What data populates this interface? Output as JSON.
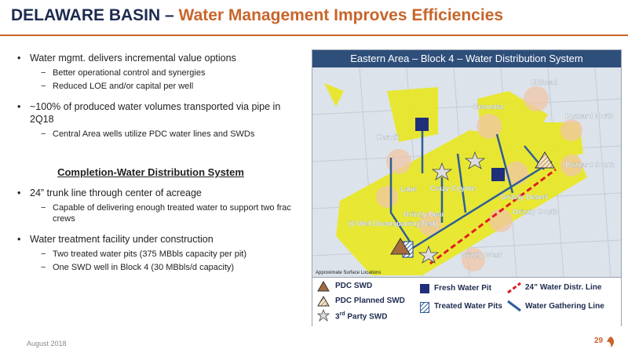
{
  "header": {
    "title_main": "DELAWARE BASIN – ",
    "title_accent": "Water Management Improves Efficiencies"
  },
  "left_panel": {
    "bullets_top": [
      {
        "text": "Water mgmt. delivers incremental value options",
        "subs": [
          "Better operational control and synergies",
          "Reduced LOE and/or capital per well"
        ]
      },
      {
        "text": "~100% of produced water volumes transported via pipe in 2Q18",
        "subs": [
          "Central Area wells utilize PDC water lines and SWDs"
        ]
      }
    ],
    "section_heading": "Completion-Water Distribution System",
    "bullets_bottom": [
      {
        "text": "24” trunk line through center of acreage",
        "subs": [
          "Capable of delivering enough treated water to support two frac crews"
        ]
      },
      {
        "text": "Water treatment facility under construction",
        "subs": [
          "Two treated water pits (375 MBbls capacity per pit)",
          "One SWD well in Block 4 (30 MBbls/d capacity)"
        ]
      }
    ]
  },
  "map": {
    "title": "Eastern Area – Block 4 – Water Distribution System",
    "labels": {
      "elkhead": "Elkhead",
      "kenosha": "Kenosha",
      "buzzard_north": "Buzzard North",
      "buzzard_south": "Buzzard South",
      "hermit": "Hermit",
      "lake": "Lake",
      "grizzly_south": "Grizzly South",
      "grizzly_west": "Grizzly West",
      "grizzly_bear": "Grizzly Bear",
      "well_downspacing": "(6 Well Downspacing Test)",
      "center_a": "Crazy Coyote",
      "center_b": "Grizzly Desert"
    },
    "note": "Approximate Surface Locations",
    "colors": {
      "acreage": "#e8e82a",
      "trunk": "#e01e1e",
      "gathering": "#2f5d99",
      "fresh": "#1f2f7a",
      "dspu": "#f0c6a8"
    }
  },
  "legend": {
    "pdc_swd": "PDC SWD",
    "pdc_planned_swd": "PDC Planned SWD",
    "third_party_prefix": "3",
    "third_party_sup": "rd",
    "third_party_suffix": " Party SWD",
    "fresh_water_pit": "Fresh Water Pit",
    "treated_water_pits": "Treated Water Pits",
    "distr_line": "24” Water Distr. Line",
    "gathering_line": "Water Gathering Line"
  },
  "footer": {
    "date": "August 2018",
    "page": "29"
  }
}
